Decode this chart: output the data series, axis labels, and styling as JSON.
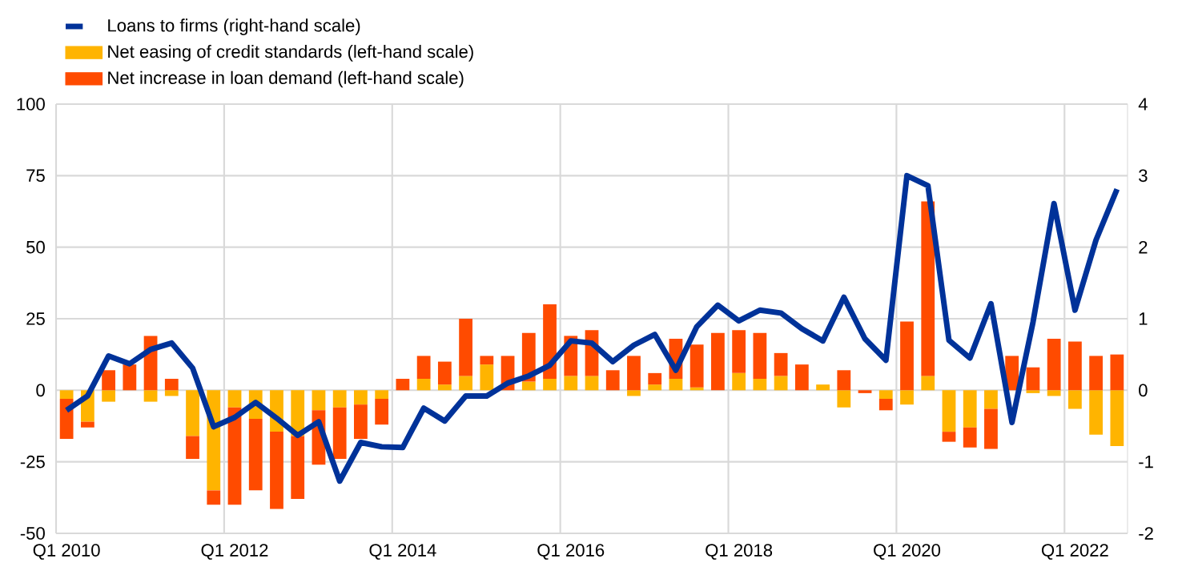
{
  "chart_data": {
    "type": "bar",
    "stacked": true,
    "categories": [
      "Q1 2010",
      null,
      null,
      null,
      null,
      null,
      null,
      null,
      "Q1 2012",
      null,
      null,
      null,
      null,
      null,
      null,
      null,
      "Q1 2014",
      null,
      null,
      null,
      null,
      null,
      null,
      null,
      "Q1 2016",
      null,
      null,
      null,
      null,
      null,
      null,
      null,
      "Q1 2018",
      null,
      null,
      null,
      null,
      null,
      null,
      null,
      "Q1 2020",
      null,
      null,
      null,
      null,
      null,
      null,
      null,
      "Q1 2022",
      null,
      null
    ],
    "series": [
      {
        "type": "line",
        "axis": "y2",
        "name": "Loans to firms (right-hand scale)",
        "color": "#003299",
        "values": [
          -0.28,
          -0.08,
          0.48,
          0.37,
          0.57,
          0.66,
          0.31,
          -0.51,
          -0.38,
          -0.17,
          -0.39,
          -0.63,
          -0.44,
          -1.27,
          -0.73,
          -0.79,
          -0.8,
          -0.25,
          -0.43,
          -0.08,
          -0.08,
          0.1,
          0.2,
          0.35,
          0.69,
          0.66,
          0.4,
          0.63,
          0.78,
          0.28,
          0.89,
          1.19,
          0.97,
          1.12,
          1.08,
          0.86,
          0.69,
          1.3,
          0.72,
          0.42,
          3.0,
          2.86,
          0.7,
          0.45,
          1.21,
          -0.45,
          0.95,
          2.61,
          1.12,
          2.1,
          2.81
        ]
      },
      {
        "name": "Net easing of credit standards (left-hand scale)",
        "color": "#ffb400",
        "values": [
          -3,
          -11,
          -4,
          0,
          -4,
          -2,
          -16,
          -35,
          -6,
          -10,
          -14.5,
          -16,
          -7,
          -6,
          -5,
          -3,
          0,
          4,
          2,
          5,
          9,
          null,
          3,
          4,
          5,
          5,
          0,
          -2,
          2,
          4,
          1,
          0,
          6,
          4,
          5,
          0,
          2,
          -6,
          0,
          -3,
          -5,
          5,
          -14.5,
          -13,
          -6.5,
          null,
          -1,
          -2,
          -6.5,
          -15.5,
          -19.5
        ]
      },
      {
        "name": "Net increase in loan demand (left-hand scale)",
        "color": "#ff4b00",
        "values": [
          -14,
          -2,
          7,
          9,
          19,
          4,
          -8,
          -5,
          -34,
          -25,
          -27,
          -22,
          -19,
          -18,
          -12,
          -9,
          4,
          8,
          8,
          20,
          3,
          12,
          17,
          26,
          14,
          16,
          7,
          12,
          4,
          14,
          15,
          20,
          15,
          16,
          8,
          9,
          0,
          7,
          -1,
          -4,
          24,
          61,
          -3.5,
          -7,
          -14,
          12,
          8,
          18,
          17,
          12,
          12.5
        ]
      }
    ],
    "ylim": [
      -50,
      100
    ],
    "yticks": [
      -50,
      -25,
      0,
      25,
      50,
      75,
      100
    ],
    "y2lim": [
      -2,
      4
    ],
    "y2ticks": [
      -2,
      -1,
      0,
      1,
      2,
      3,
      4
    ],
    "grid": true,
    "legend": "top left"
  }
}
